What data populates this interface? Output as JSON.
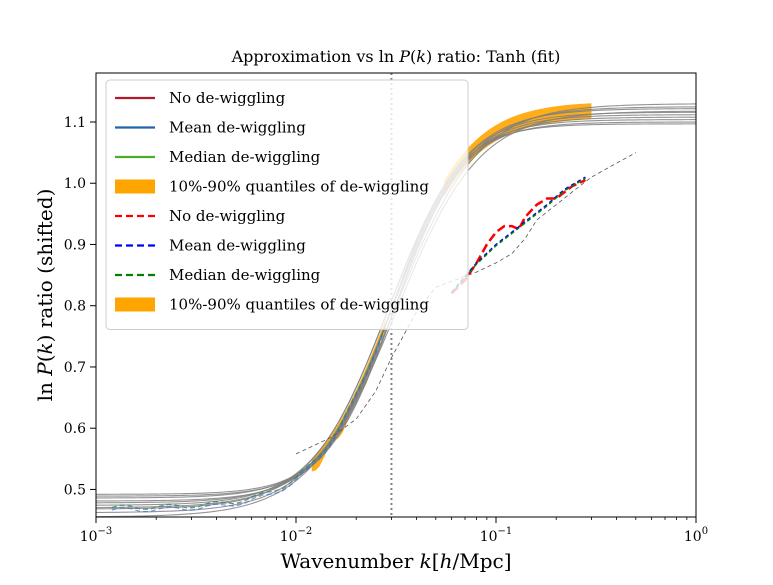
{
  "chart_data": {
    "type": "line",
    "title": "Approximation vs ln P(k) ratio: Tanh (fit)",
    "xlabel": "Wavenumber k[h/Mpc]",
    "ylabel": "ln P(k) ratio (shifted)",
    "xscale": "log",
    "xlim": [
      0.001,
      1.0
    ],
    "ylim": [
      0.455,
      1.18
    ],
    "x_ticks": [
      {
        "value": 0.001,
        "base": "10",
        "exp": "−3"
      },
      {
        "value": 0.01,
        "base": "10",
        "exp": "−2"
      },
      {
        "value": 0.1,
        "base": "10",
        "exp": "−1"
      },
      {
        "value": 1.0,
        "base": "10",
        "exp": "0"
      }
    ],
    "y_ticks": [
      {
        "value": 0.5,
        "label": "0.5"
      },
      {
        "value": 0.6,
        "label": "0.6"
      },
      {
        "value": 0.7,
        "label": "0.7"
      },
      {
        "value": 0.8,
        "label": "0.8"
      },
      {
        "value": 0.9,
        "label": "0.9"
      },
      {
        "value": 1.0,
        "label": "1.0"
      },
      {
        "value": 1.1,
        "label": "1.1"
      }
    ],
    "vline_x": 0.03,
    "legend_position": "upper-left",
    "legend": [
      {
        "label": "No de-wiggling",
        "style": "solid",
        "color": "#b2182b"
      },
      {
        "label": "Mean de-wiggling",
        "style": "solid",
        "color": "#2166ac"
      },
      {
        "label": "Median de-wiggling",
        "style": "solid",
        "color": "#4dac26"
      },
      {
        "label": "10%-90% quantiles of de-wiggling",
        "style": "patch",
        "color": "#ffa500"
      },
      {
        "label": "No de-wiggling",
        "style": "dashed",
        "color": "#ff0000"
      },
      {
        "label": "Mean de-wiggling",
        "style": "dashed",
        "color": "#0000ff"
      },
      {
        "label": "Median de-wiggling",
        "style": "dashed",
        "color": "#008000"
      },
      {
        "label": "10%-90% quantiles of de-wiggling",
        "style": "patch",
        "color": "#ffa500"
      }
    ],
    "series": [
      {
        "name": "No de-wiggling (dashed)",
        "color": "#ff0000",
        "style": "dashed",
        "width": 2.5,
        "x": [
          0.06,
          0.07,
          0.08,
          0.09,
          0.1,
          0.11,
          0.12,
          0.13,
          0.14,
          0.16,
          0.18,
          0.2,
          0.24,
          0.28
        ],
        "y": [
          0.82,
          0.842,
          0.87,
          0.9,
          0.92,
          0.93,
          0.93,
          0.925,
          0.945,
          0.965,
          0.975,
          0.975,
          0.995,
          1.005
        ]
      },
      {
        "name": "Mean de-wiggling (dashed)",
        "color": "#0000ff",
        "style": "dashed",
        "width": 1.5,
        "x": [
          0.06,
          0.08,
          0.1,
          0.12,
          0.15,
          0.18,
          0.22,
          0.28
        ],
        "y": [
          0.822,
          0.87,
          0.9,
          0.92,
          0.945,
          0.965,
          0.99,
          1.01
        ]
      },
      {
        "name": "Median de-wiggling (dashed)",
        "color": "#008000",
        "style": "dashed",
        "width": 1.5,
        "x": [
          0.06,
          0.08,
          0.1,
          0.12,
          0.15,
          0.18,
          0.22,
          0.28
        ],
        "y": [
          0.82,
          0.868,
          0.898,
          0.918,
          0.943,
          0.963,
          0.988,
          1.008
        ]
      },
      {
        "name": "Reference (thin dashed)",
        "color": "#555555",
        "style": "dashed",
        "width": 0.8,
        "x": [
          0.01,
          0.015,
          0.02,
          0.025,
          0.03,
          0.04,
          0.05,
          0.06,
          0.08,
          0.1,
          0.12,
          0.14,
          0.16,
          0.2,
          0.25,
          0.3,
          0.5
        ],
        "y": [
          0.558,
          0.585,
          0.615,
          0.66,
          0.715,
          0.79,
          0.83,
          0.84,
          0.855,
          0.87,
          0.885,
          0.91,
          0.94,
          0.965,
          0.99,
          1.01,
          1.05
        ]
      }
    ]
  }
}
